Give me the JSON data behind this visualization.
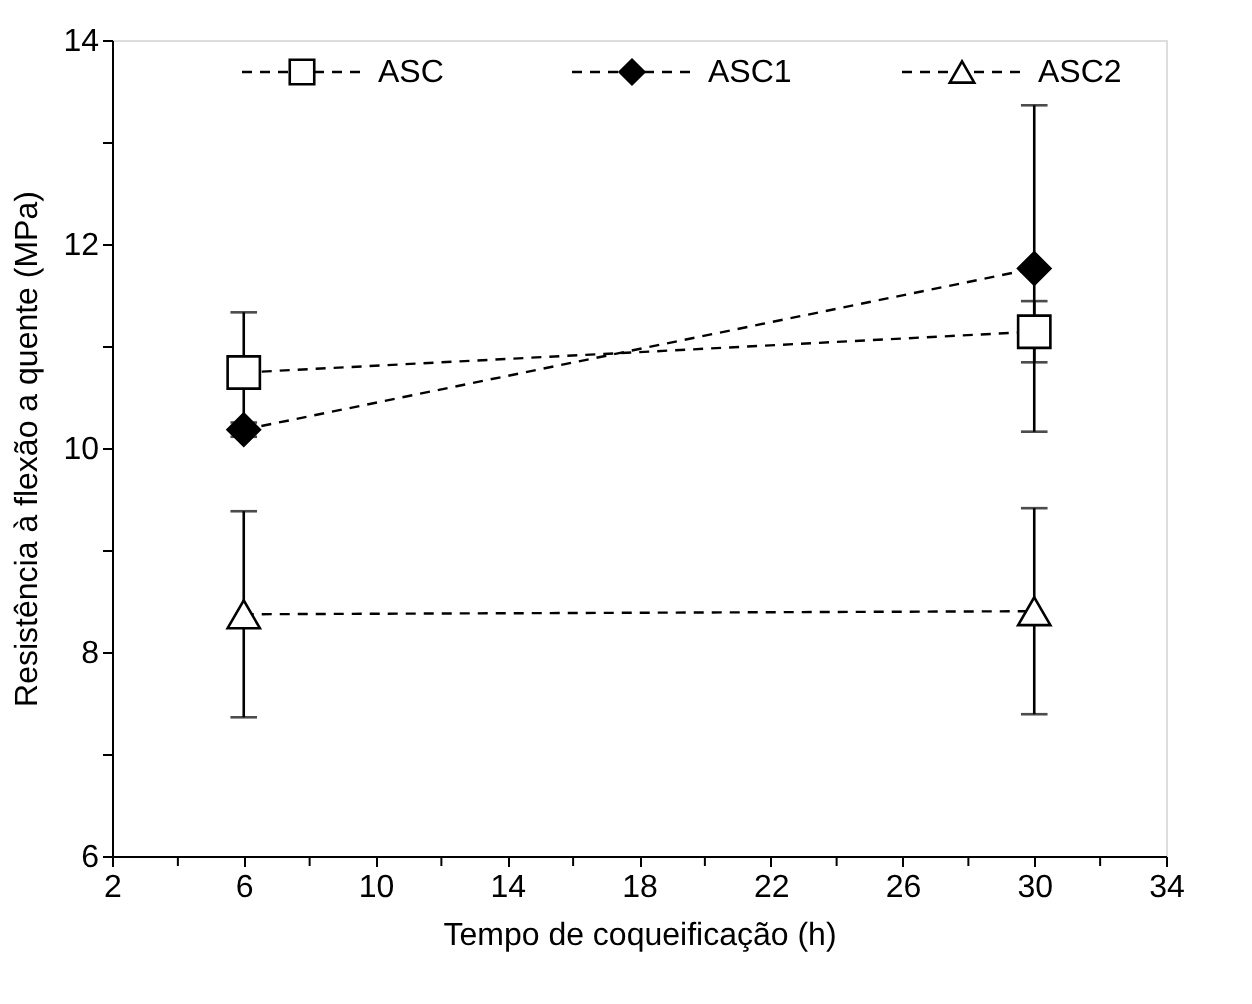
{
  "chart_data": {
    "type": "line",
    "xlabel": "Tempo de coqueificação (h)",
    "ylabel": "Resistência à flexão a quente  (MPa)",
    "x": [
      6,
      30
    ],
    "series": [
      {
        "name": "ASC",
        "color": "#000000",
        "marker": "square",
        "values": [
          10.74,
          11.14
        ],
        "errors": [
          0.59,
          0.3
        ]
      },
      {
        "name": "ASC1",
        "color": "#000000",
        "marker": "diamond",
        "values": [
          10.18,
          11.76
        ],
        "errors": [
          0.07,
          1.6
        ]
      },
      {
        "name": "ASC2",
        "color": "#000000",
        "marker": "triangle",
        "values": [
          8.37,
          8.4
        ],
        "errors": [
          1.01,
          1.01
        ]
      }
    ],
    "line_style": "dashed",
    "legend": "top",
    "grid": false,
    "xlim": [
      2,
      34
    ],
    "xticks": [
      2,
      {
        "value": 4,
        "label": null
      },
      6,
      {
        "value": 8,
        "label": null
      },
      10,
      {
        "value": 12,
        "label": null
      },
      14,
      {
        "value": 16,
        "label": null
      },
      18,
      {
        "value": 20,
        "label": null
      },
      22,
      {
        "value": 24,
        "label": null
      },
      26,
      {
        "value": 28,
        "label": null
      },
      30,
      {
        "value": 32,
        "label": null
      },
      34
    ],
    "ylim": [
      6,
      14
    ],
    "yticks": [
      6,
      {
        "value": 7,
        "label": null
      },
      8,
      {
        "value": 9,
        "label": null
      },
      10,
      {
        "value": 11,
        "label": null
      },
      12,
      {
        "value": 13,
        "label": null
      },
      14
    ]
  }
}
